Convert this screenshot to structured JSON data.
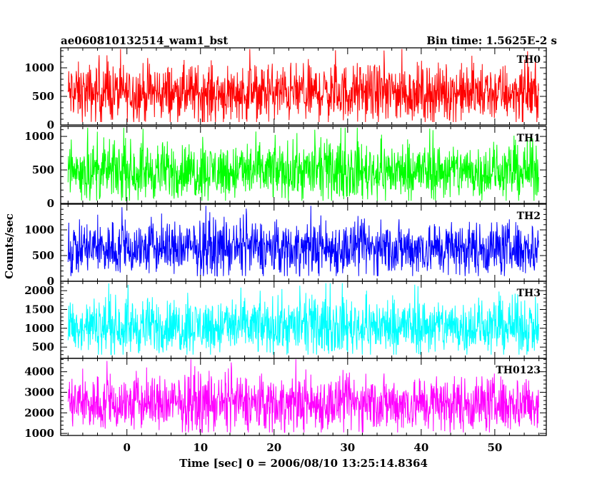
{
  "header": {
    "left_title": "ae060810132514_wam1_bst",
    "right_title": "Bin time: 1.5625E-2 s"
  },
  "chart_data": {
    "type": "line",
    "title": "ae060810132514_wam1_bst",
    "subtitle": "Bin time: 1.5625E-2 s",
    "xlabel": "Time [sec] 0 = 2006/08/10 13:25:14.8364",
    "ylabel": "Counts/sec",
    "xlim": [
      -9,
      57
    ],
    "x_ticks": [
      0,
      10,
      20,
      30,
      40,
      50
    ],
    "x_tick_labels": [
      "0",
      "10",
      "20",
      "30",
      "40",
      "50"
    ],
    "data_x_range": [
      -8,
      56
    ],
    "bin_time_s": 0.015625,
    "series": [
      {
        "name": "TH0",
        "color": "#ff0000",
        "ylim": [
          0,
          1350
        ],
        "y_ticks": [
          0,
          500,
          1000
        ],
        "y_tick_labels": [
          "0",
          "500",
          "1000"
        ],
        "mean": 560,
        "min": 50,
        "max": 1330
      },
      {
        "name": "TH1",
        "color": "#00ff00",
        "ylim": [
          0,
          1150
        ],
        "y_ticks": [
          0,
          500,
          1000
        ],
        "y_tick_labels": [
          "0",
          "500",
          "1000"
        ],
        "mean": 480,
        "min": 40,
        "max": 1130
      },
      {
        "name": "TH2",
        "color": "#0000ff",
        "ylim": [
          0,
          1500
        ],
        "y_ticks": [
          0,
          500,
          1000
        ],
        "y_tick_labels": [
          "0",
          "500",
          "1000"
        ],
        "mean": 640,
        "min": 100,
        "max": 1470
      },
      {
        "name": "TH3",
        "color": "#00ffff",
        "ylim": [
          200,
          2250
        ],
        "y_ticks": [
          500,
          1000,
          1500,
          2000
        ],
        "y_tick_labels": [
          "500",
          "1000",
          "1500",
          "2000"
        ],
        "mean": 1050,
        "min": 300,
        "max": 2200
      },
      {
        "name": "TH0123",
        "color": "#ff00ff",
        "ylim": [
          900,
          4650
        ],
        "y_ticks": [
          1000,
          2000,
          3000,
          4000
        ],
        "y_tick_labels": [
          "1000",
          "2000",
          "3000",
          "4000"
        ],
        "mean": 2450,
        "min": 1050,
        "max": 4600
      }
    ]
  }
}
